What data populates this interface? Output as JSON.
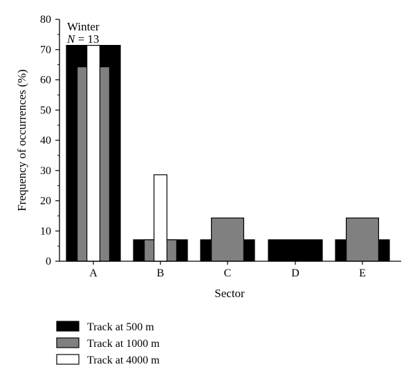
{
  "chart_data": {
    "type": "bar",
    "title": "",
    "annotation": {
      "line1": "Winter",
      "line2_var": "N",
      "line2_rest": " = 13"
    },
    "xlabel": "Sector",
    "ylabel": "Frequency of occurrences (%)",
    "ylim": [
      0,
      80
    ],
    "yticks": [
      0,
      10,
      20,
      30,
      40,
      50,
      60,
      70,
      80
    ],
    "categories": [
      "A",
      "B",
      "C",
      "D",
      "E"
    ],
    "layering": "overlaid bars of decreasing width (500 m widest, back; 4000 m narrowest, front)",
    "series": [
      {
        "name": "Track at 500 m",
        "color": "#000000",
        "values": [
          71.4,
          7.1,
          7.1,
          7.1,
          7.1
        ]
      },
      {
        "name": "Track at 1000 m",
        "color": "#808080",
        "values": [
          64.3,
          7.1,
          14.3,
          0,
          14.3
        ]
      },
      {
        "name": "Track at 4000 m",
        "color": "#ffffff",
        "values": [
          71.4,
          28.6,
          0,
          0,
          0
        ]
      }
    ],
    "grid": false,
    "legend_position": "bottom-left"
  }
}
